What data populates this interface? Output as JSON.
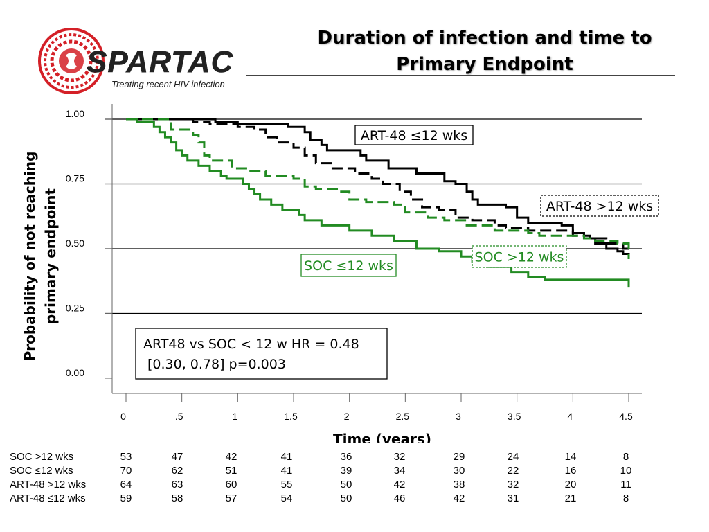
{
  "logo": {
    "name": "SPARTAC",
    "tagline": "Treating recent HIV infection"
  },
  "title": {
    "line1": "Duration of infection and time to",
    "line2": "Primary Endpoint"
  },
  "colors": {
    "art_series": "#000000",
    "soc_series": "#228b22",
    "logo_red": "#d42027"
  },
  "chart_data": {
    "type": "line",
    "subtype": "kaplan-meier step curves",
    "xlabel": "Time (years)",
    "ylabel": "Probability of not reaching primary endpoint",
    "xlim": [
      0,
      4.5
    ],
    "ylim": [
      0,
      1
    ],
    "x_ticks": [
      "0",
      ".5",
      "1",
      "1.5",
      "2",
      "2.5",
      "3",
      "3.5",
      "4",
      "4.5"
    ],
    "y_ticks": [
      "0.00",
      "0.25",
      "0.50",
      "0.75",
      "1.00"
    ],
    "grid": "horizontal lines at 0.25, 0.50, 0.75, 1.00",
    "series": [
      {
        "name": "ART-48 ≤12 wks",
        "color": "black",
        "dash": "solid",
        "points": [
          [
            0,
            1.0
          ],
          [
            0.8,
            0.99
          ],
          [
            1.0,
            0.98
          ],
          [
            1.45,
            0.97
          ],
          [
            1.6,
            0.95
          ],
          [
            1.65,
            0.92
          ],
          [
            1.75,
            0.9
          ],
          [
            1.8,
            0.88
          ],
          [
            2.1,
            0.86
          ],
          [
            2.15,
            0.84
          ],
          [
            2.35,
            0.81
          ],
          [
            2.6,
            0.79
          ],
          [
            2.85,
            0.76
          ],
          [
            2.95,
            0.75
          ],
          [
            3.05,
            0.72
          ],
          [
            3.1,
            0.69
          ],
          [
            3.15,
            0.67
          ],
          [
            3.4,
            0.66
          ],
          [
            3.5,
            0.62
          ],
          [
            3.6,
            0.6
          ],
          [
            3.9,
            0.59
          ],
          [
            4.0,
            0.56
          ],
          [
            4.1,
            0.54
          ],
          [
            4.2,
            0.52
          ],
          [
            4.3,
            0.5
          ],
          [
            4.4,
            0.49
          ],
          [
            4.45,
            0.48
          ],
          [
            4.5,
            0.46
          ]
        ]
      },
      {
        "name": "ART-48 >12 wks",
        "color": "black",
        "dash": "dashed",
        "points": [
          [
            0,
            1.0
          ],
          [
            0.6,
            0.99
          ],
          [
            0.75,
            0.98
          ],
          [
            1.0,
            0.97
          ],
          [
            1.15,
            0.96
          ],
          [
            1.25,
            0.93
          ],
          [
            1.35,
            0.91
          ],
          [
            1.5,
            0.89
          ],
          [
            1.6,
            0.86
          ],
          [
            1.7,
            0.83
          ],
          [
            1.85,
            0.81
          ],
          [
            2.05,
            0.79
          ],
          [
            2.2,
            0.77
          ],
          [
            2.3,
            0.75
          ],
          [
            2.45,
            0.72
          ],
          [
            2.55,
            0.69
          ],
          [
            2.65,
            0.66
          ],
          [
            2.8,
            0.65
          ],
          [
            2.95,
            0.62
          ],
          [
            3.1,
            0.61
          ],
          [
            3.3,
            0.59
          ],
          [
            3.4,
            0.58
          ],
          [
            3.6,
            0.57
          ],
          [
            4.0,
            0.55
          ],
          [
            4.15,
            0.54
          ],
          [
            4.3,
            0.52
          ],
          [
            4.45,
            0.5
          ],
          [
            4.5,
            0.46
          ]
        ]
      },
      {
        "name": "SOC >12 wks",
        "color": "green",
        "dash": "dashed",
        "points": [
          [
            0,
            1.0
          ],
          [
            0.4,
            0.96
          ],
          [
            0.6,
            0.94
          ],
          [
            0.65,
            0.91
          ],
          [
            0.7,
            0.89
          ],
          [
            0.7,
            0.86
          ],
          [
            0.75,
            0.84
          ],
          [
            0.9,
            0.84
          ],
          [
            0.95,
            0.81
          ],
          [
            1.1,
            0.8
          ],
          [
            1.25,
            0.78
          ],
          [
            1.5,
            0.77
          ],
          [
            1.6,
            0.74
          ],
          [
            1.7,
            0.73
          ],
          [
            1.9,
            0.72
          ],
          [
            2.0,
            0.69
          ],
          [
            2.15,
            0.68
          ],
          [
            2.4,
            0.67
          ],
          [
            2.5,
            0.64
          ],
          [
            2.7,
            0.62
          ],
          [
            2.85,
            0.61
          ],
          [
            3.05,
            0.59
          ],
          [
            3.3,
            0.57
          ],
          [
            3.6,
            0.56
          ],
          [
            3.7,
            0.55
          ],
          [
            4.1,
            0.54
          ],
          [
            4.2,
            0.53
          ],
          [
            4.4,
            0.52
          ],
          [
            4.5,
            0.46
          ]
        ]
      },
      {
        "name": "SOC ≤12 wks",
        "color": "green",
        "dash": "solid",
        "points": [
          [
            0,
            1.0
          ],
          [
            0.1,
            0.99
          ],
          [
            0.25,
            0.97
          ],
          [
            0.3,
            0.95
          ],
          [
            0.35,
            0.93
          ],
          [
            0.4,
            0.91
          ],
          [
            0.45,
            0.88
          ],
          [
            0.5,
            0.86
          ],
          [
            0.55,
            0.84
          ],
          [
            0.65,
            0.82
          ],
          [
            0.75,
            0.8
          ],
          [
            0.85,
            0.78
          ],
          [
            0.9,
            0.77
          ],
          [
            1.05,
            0.75
          ],
          [
            1.1,
            0.73
          ],
          [
            1.15,
            0.71
          ],
          [
            1.2,
            0.69
          ],
          [
            1.3,
            0.67
          ],
          [
            1.4,
            0.65
          ],
          [
            1.55,
            0.63
          ],
          [
            1.6,
            0.61
          ],
          [
            1.75,
            0.59
          ],
          [
            2.0,
            0.57
          ],
          [
            2.2,
            0.55
          ],
          [
            2.4,
            0.53
          ],
          [
            2.6,
            0.5
          ],
          [
            2.8,
            0.49
          ],
          [
            3.0,
            0.47
          ],
          [
            3.1,
            0.45
          ],
          [
            3.25,
            0.43
          ],
          [
            3.45,
            0.41
          ],
          [
            3.6,
            0.39
          ],
          [
            3.75,
            0.38
          ],
          [
            4.4,
            0.38
          ],
          [
            4.5,
            0.35
          ]
        ]
      }
    ],
    "annotations": {
      "art_le12": "ART-48 ≤12 wks",
      "art_gt12": "ART-48 >12 wks",
      "soc_gt12": "SOC >12 wks",
      "soc_le12": "SOC ≤12 wks",
      "hr_line1": "ART48 vs SOC < 12 w HR = 0.48",
      "hr_line2": "[0.30, 0.78] p=0.003"
    }
  },
  "risk_table": {
    "times": [
      0,
      0.5,
      1,
      1.5,
      2,
      2.5,
      3,
      3.5,
      4,
      4.5
    ],
    "rows": [
      {
        "label": "SOC >12 wks",
        "values": [
          "53",
          "47",
          "42",
          "41",
          "36",
          "32",
          "29",
          "24",
          "14",
          "8"
        ]
      },
      {
        "label": "SOC ≤12 wks",
        "values": [
          "70",
          "62",
          "51",
          "41",
          "39",
          "34",
          "30",
          "22",
          "16",
          "10"
        ]
      },
      {
        "label": "ART-48 >12 wks",
        "values": [
          "64",
          "63",
          "60",
          "55",
          "50",
          "42",
          "38",
          "32",
          "20",
          "11"
        ]
      },
      {
        "label": "ART-48 ≤12 wks",
        "values": [
          "59",
          "58",
          "57",
          "54",
          "50",
          "46",
          "42",
          "31",
          "21",
          "8"
        ]
      }
    ]
  }
}
